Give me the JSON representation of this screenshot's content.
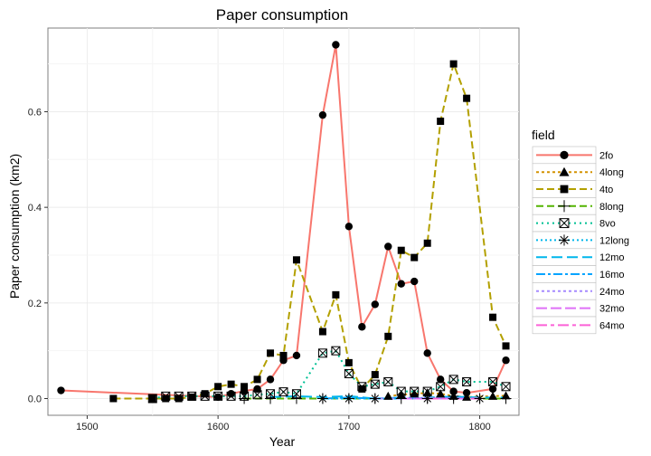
{
  "chart_data": {
    "type": "line",
    "title": "Paper consumption",
    "xlabel": "Year",
    "ylabel": "Paper consumption (km2)",
    "xlim": [
      1470,
      1830
    ],
    "ylim": [
      -0.035,
      0.775
    ],
    "xticks": [
      1500,
      1600,
      1700,
      1800
    ],
    "yticks": [
      0.0,
      0.2,
      0.4,
      0.6
    ],
    "ytick_labels": [
      "0.0",
      "0.2",
      "0.4",
      "0.6"
    ],
    "grid": true,
    "legend": {
      "title": "field",
      "placement": "right"
    },
    "series": [
      {
        "name": "2fo",
        "color": "#f8766d",
        "dash": "",
        "marker": "circle",
        "points": [
          [
            1480,
            0.017
          ],
          [
            1600,
            0.003
          ],
          [
            1610,
            0.01
          ],
          [
            1620,
            0.016
          ],
          [
            1630,
            0.02
          ],
          [
            1640,
            0.04
          ],
          [
            1650,
            0.08
          ],
          [
            1660,
            0.09
          ],
          [
            1680,
            0.593
          ],
          [
            1690,
            0.74
          ],
          [
            1700,
            0.36
          ],
          [
            1710,
            0.15
          ],
          [
            1720,
            0.197
          ],
          [
            1730,
            0.318
          ],
          [
            1740,
            0.24
          ],
          [
            1750,
            0.245
          ],
          [
            1760,
            0.095
          ],
          [
            1770,
            0.04
          ],
          [
            1780,
            0.015
          ],
          [
            1790,
            0.012
          ],
          [
            1810,
            0.02
          ],
          [
            1820,
            0.08
          ]
        ]
      },
      {
        "name": "4long",
        "color": "#d39200",
        "dash": "3,3",
        "marker": "triangle",
        "points": [
          [
            1730,
            0.005
          ],
          [
            1740,
            0.008
          ],
          [
            1750,
            0.01
          ],
          [
            1760,
            0.012
          ],
          [
            1770,
            0.01
          ],
          [
            1780,
            0.005
          ],
          [
            1790,
            0.003
          ],
          [
            1810,
            0.005
          ],
          [
            1820,
            0.006
          ]
        ]
      },
      {
        "name": "4to",
        "color": "#b3a000",
        "dash": "8,4",
        "marker": "square",
        "points": [
          [
            1520,
            0.0
          ],
          [
            1550,
            0.0
          ],
          [
            1560,
            0.0
          ],
          [
            1570,
            0.0
          ],
          [
            1580,
            0.003
          ],
          [
            1590,
            0.01
          ],
          [
            1600,
            0.025
          ],
          [
            1610,
            0.03
          ],
          [
            1620,
            0.025
          ],
          [
            1630,
            0.04
          ],
          [
            1640,
            0.095
          ],
          [
            1650,
            0.09
          ],
          [
            1660,
            0.29
          ],
          [
            1680,
            0.14
          ],
          [
            1690,
            0.217
          ],
          [
            1700,
            0.075
          ],
          [
            1710,
            0.02
          ],
          [
            1720,
            0.05
          ],
          [
            1730,
            0.13
          ],
          [
            1740,
            0.31
          ],
          [
            1750,
            0.295
          ],
          [
            1760,
            0.325
          ],
          [
            1770,
            0.58
          ],
          [
            1780,
            0.7
          ],
          [
            1790,
            0.628
          ],
          [
            1810,
            0.17
          ],
          [
            1820,
            0.11
          ]
        ]
      },
      {
        "name": "8long",
        "color": "#53b400",
        "dash": "8,4",
        "marker": "plus",
        "points": [
          [
            1620,
            0.0
          ],
          [
            1640,
            0.0
          ],
          [
            1660,
            0.0
          ],
          [
            1680,
            0.0
          ],
          [
            1700,
            0.0
          ],
          [
            1720,
            0.0
          ],
          [
            1740,
            0.0
          ],
          [
            1760,
            0.0
          ],
          [
            1780,
            0.0
          ],
          [
            1800,
            0.0
          ],
          [
            1820,
            0.0
          ]
        ]
      },
      {
        "name": "8vo",
        "color": "#00c094",
        "dash": "2,4",
        "marker": "boxx",
        "points": [
          [
            1550,
            0.0
          ],
          [
            1560,
            0.005
          ],
          [
            1570,
            0.005
          ],
          [
            1580,
            0.005
          ],
          [
            1590,
            0.005
          ],
          [
            1600,
            0.005
          ],
          [
            1610,
            0.005
          ],
          [
            1620,
            0.005
          ],
          [
            1630,
            0.008
          ],
          [
            1640,
            0.01
          ],
          [
            1650,
            0.014
          ],
          [
            1660,
            0.01
          ],
          [
            1680,
            0.095
          ],
          [
            1690,
            0.1
          ],
          [
            1700,
            0.052
          ],
          [
            1710,
            0.025
          ],
          [
            1720,
            0.03
          ],
          [
            1730,
            0.035
          ],
          [
            1740,
            0.015
          ],
          [
            1750,
            0.015
          ],
          [
            1760,
            0.015
          ],
          [
            1770,
            0.025
          ],
          [
            1780,
            0.04
          ],
          [
            1790,
            0.035
          ],
          [
            1810,
            0.035
          ],
          [
            1820,
            0.025
          ]
        ]
      },
      {
        "name": "12long",
        "color": "#00b6eb",
        "dash": "2,3",
        "marker": "asterisk",
        "points": [
          [
            1680,
            0.0
          ],
          [
            1700,
            0.0
          ],
          [
            1720,
            0.0
          ],
          [
            1760,
            0.0
          ],
          [
            1780,
            0.005
          ],
          [
            1800,
            0.0
          ]
        ]
      },
      {
        "name": "12mo",
        "color": "#00b6eb",
        "dash": "12,5",
        "marker": "none",
        "points": [
          [
            1640,
            0.003
          ],
          [
            1660,
            0.005
          ],
          [
            1680,
            0.003
          ],
          [
            1700,
            0.005
          ],
          [
            1720,
            0.0
          ],
          [
            1740,
            0.0
          ],
          [
            1760,
            0.002
          ],
          [
            1780,
            0.004
          ],
          [
            1800,
            0.002
          ],
          [
            1820,
            0.002
          ]
        ]
      },
      {
        "name": "16mo",
        "color": "#06a4ff",
        "dash": "10,3,3,3",
        "marker": "none",
        "points": [
          [
            1680,
            0.0
          ],
          [
            1700,
            0.002
          ],
          [
            1720,
            0.0
          ],
          [
            1740,
            0.002
          ],
          [
            1760,
            0.001
          ],
          [
            1780,
            0.002
          ],
          [
            1800,
            0.0
          ]
        ]
      },
      {
        "name": "24mo",
        "color": "#a58aff",
        "dash": "3,3",
        "marker": "none",
        "points": [
          [
            1720,
            0.0
          ],
          [
            1740,
            0.0
          ],
          [
            1760,
            0.0
          ],
          [
            1780,
            0.0
          ],
          [
            1800,
            0.0
          ]
        ]
      },
      {
        "name": "32mo",
        "color": "#df70f8",
        "dash": "12,4",
        "marker": "none",
        "points": [
          [
            1740,
            0.0
          ],
          [
            1760,
            0.0
          ],
          [
            1780,
            0.0
          ],
          [
            1800,
            0.0
          ]
        ]
      },
      {
        "name": "64mo",
        "color": "#fb61d7",
        "dash": "12,4,4,4",
        "marker": "none",
        "points": [
          [
            1760,
            0.0
          ],
          [
            1780,
            0.0
          ],
          [
            1800,
            0.0
          ]
        ]
      }
    ]
  }
}
